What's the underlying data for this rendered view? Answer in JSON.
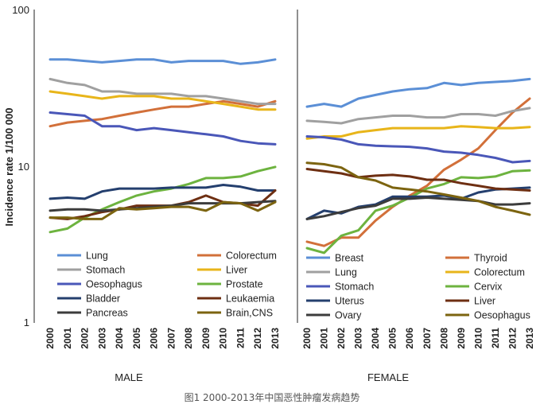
{
  "caption": "图1 2000-2013年中国恶性肿瘤发病趋势",
  "chart_data": {
    "type": "line",
    "yscale": "log",
    "ylabel": "Incidence rate 1/100 000",
    "ylim": [
      1,
      100
    ],
    "yticks": [
      "100",
      "10",
      "1"
    ],
    "x": [
      "2000",
      "2001",
      "2002",
      "2003",
      "2004",
      "2005",
      "2006",
      "2007",
      "2008",
      "2009",
      "2010",
      "2011",
      "2012",
      "2013"
    ],
    "panels": [
      {
        "title": "MALE",
        "legend_position": "bottom",
        "series": [
          {
            "name": "Lung",
            "color": "#5b8fd6",
            "values": [
              48,
              48,
              47,
              46,
              47,
              48,
              48,
              46,
              47,
              47,
              47,
              45,
              46,
              48
            ]
          },
          {
            "name": "Colorectum",
            "color": "#d2703a",
            "values": [
              18,
              19,
              19.5,
              20,
              21,
              22,
              23,
              24,
              24,
              25,
              26,
              25,
              24,
              26
            ]
          },
          {
            "name": "Stomach",
            "color": "#a0a0a0",
            "values": [
              36,
              34,
              33,
              30,
              30,
              29,
              29,
              29,
              28,
              28,
              27,
              26,
              25,
              25
            ]
          },
          {
            "name": "Liver",
            "color": "#e8b51a",
            "values": [
              30,
              29,
              28,
              27,
              28,
              28,
              28,
              27,
              27,
              26,
              25,
              24,
              23,
              23
            ]
          },
          {
            "name": "Oesophagus",
            "color": "#4a57b8",
            "values": [
              22,
              21.5,
              21,
              18,
              18,
              17,
              17.5,
              17,
              16.5,
              16,
              15.5,
              14.5,
              14,
              13.8
            ]
          },
          {
            "name": "Prostate",
            "color": "#6db33f",
            "values": [
              3.8,
              4,
              4.7,
              5.3,
              5.9,
              6.5,
              6.9,
              7.2,
              7.7,
              8.4,
              8.4,
              8.6,
              9.3,
              9.9
            ]
          },
          {
            "name": "Bladder",
            "color": "#243f6e",
            "values": [
              6.2,
              6.3,
              6.2,
              6.9,
              7.2,
              7.2,
              7.2,
              7.3,
              7.3,
              7.3,
              7.6,
              7.4,
              7,
              7
            ]
          },
          {
            "name": "Leukaemia",
            "color": "#6e2f12",
            "values": [
              4.7,
              4.6,
              4.8,
              5.1,
              5.3,
              5.6,
              5.6,
              5.6,
              5.9,
              6.5,
              5.9,
              5.8,
              5.6,
              7
            ]
          },
          {
            "name": "Pancreas",
            "color": "#3c3c3c",
            "values": [
              5.2,
              5.3,
              5.3,
              5.2,
              5.3,
              5.4,
              5.5,
              5.6,
              5.8,
              5.8,
              5.8,
              5.8,
              5.9,
              6
            ]
          },
          {
            "name": "Brain,CNS",
            "color": "#7c6410",
            "values": [
              4.7,
              4.7,
              4.6,
              4.6,
              5.4,
              5.3,
              5.4,
              5.5,
              5.5,
              5.2,
              5.9,
              5.8,
              5.2,
              5.9
            ]
          }
        ]
      },
      {
        "title": "FEMALE",
        "legend_position": "bottom",
        "series": [
          {
            "name": "Breast",
            "color": "#5b8fd6",
            "values": [
              24,
              25,
              24,
              27,
              28.5,
              30,
              31,
              31.5,
              34,
              33,
              34,
              34.5,
              35,
              36
            ]
          },
          {
            "name": "Thyroid",
            "color": "#d2703a",
            "values": [
              3.3,
              3.1,
              3.5,
              3.5,
              4.5,
              5.5,
              6.5,
              7.5,
              9.5,
              11,
              13,
              17,
              22,
              27
            ]
          },
          {
            "name": "Lung",
            "color": "#a0a0a0",
            "values": [
              19.5,
              19.2,
              18.8,
              20,
              20.5,
              21,
              21,
              20.5,
              20.5,
              21.5,
              21.5,
              21,
              22.5,
              23.5
            ]
          },
          {
            "name": "Colorectum",
            "color": "#e8b51a",
            "values": [
              15,
              15.5,
              15.5,
              16.5,
              17,
              17.5,
              17.5,
              17.5,
              17.5,
              18,
              17.8,
              17.5,
              17.5,
              17.8
            ]
          },
          {
            "name": "Stomach",
            "color": "#4a57b8",
            "values": [
              15.5,
              15.3,
              14.8,
              13.8,
              13.5,
              13.4,
              13.3,
              13,
              12.4,
              12.2,
              11.8,
              11.3,
              10.6,
              10.8
            ]
          },
          {
            "name": "Cervix",
            "color": "#6db33f",
            "values": [
              3,
              2.8,
              3.6,
              3.9,
              5.2,
              5.6,
              6.3,
              7.2,
              7.7,
              8.5,
              8.4,
              8.6,
              9.3,
              9.4
            ]
          },
          {
            "name": "Uterus",
            "color": "#243f6e",
            "values": [
              4.6,
              5.2,
              5,
              5.5,
              5.7,
              6.4,
              6.4,
              6.4,
              6.5,
              6.2,
              6.8,
              7.1,
              7.2,
              7.3
            ]
          },
          {
            "name": "Liver",
            "color": "#6e2f12",
            "values": [
              9.6,
              9.3,
              9,
              8.5,
              8.7,
              8.8,
              8.6,
              8.2,
              8.2,
              7.8,
              7.5,
              7.2,
              7.1,
              7
            ]
          },
          {
            "name": "Ovary",
            "color": "#3c3c3c",
            "values": [
              4.6,
              4.8,
              5.1,
              5.4,
              5.6,
              6.2,
              6.2,
              6.3,
              6.2,
              6.1,
              6,
              5.7,
              5.7,
              5.8
            ]
          },
          {
            "name": "Oesophagus",
            "color": "#7c6410",
            "values": [
              10.5,
              10.3,
              9.8,
              8.5,
              8.1,
              7.3,
              7.1,
              6.9,
              6.6,
              6.3,
              6,
              5.5,
              5.2,
              4.9
            ]
          }
        ]
      }
    ]
  }
}
